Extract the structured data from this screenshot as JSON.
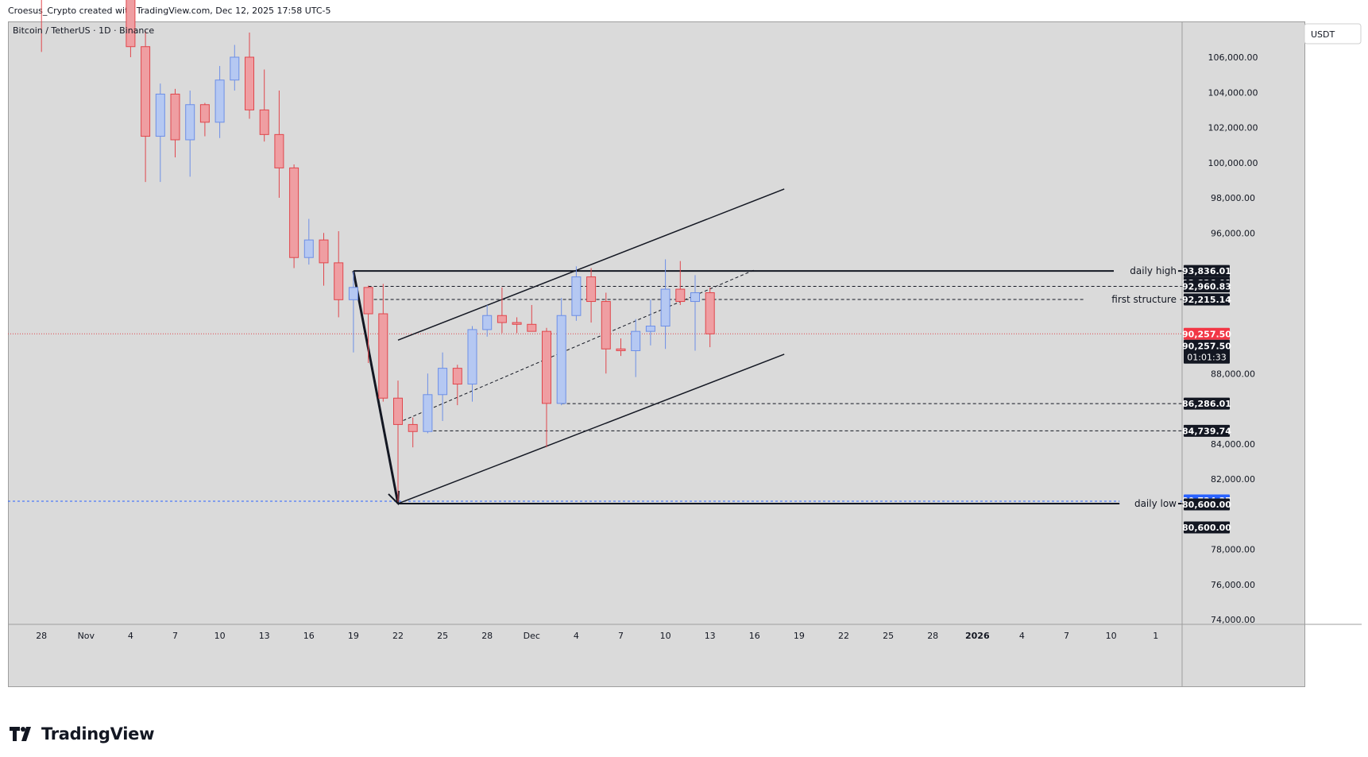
{
  "header": {
    "created_by": "Croesus_Crypto created with TradingView.com, Dec 12, 2025 17:58 UTC-5"
  },
  "symbol": {
    "title": "Bitcoin / TetherUS · 1D · Binance",
    "currency": "USDT"
  },
  "footer": {
    "brand": "TradingView"
  },
  "colors": {
    "up": "#6d8fe6",
    "up_fill": "#b5c8f2",
    "down": "#e0464c",
    "down_fill": "#ef9ea2",
    "grid_bg": "#dadada",
    "text": "#131722"
  },
  "chart_data": {
    "type": "candlestick",
    "title": "Bitcoin / TetherUS · 1D · Binance",
    "ylim": [
      73500,
      107500
    ],
    "y_ticks": [
      "106,000.00",
      "104,000.00",
      "102,000.00",
      "100,000.00",
      "98,000.00",
      "96,000.00",
      "88,000.00",
      "84,000.00",
      "82,000.00",
      "78,000.00",
      "76,000.00",
      "74,000.00"
    ],
    "y_tick_values": [
      106000,
      104000,
      102000,
      100000,
      98000,
      96000,
      88000,
      84000,
      82000,
      78000,
      76000,
      74000
    ],
    "x_ticks": [
      "28",
      "Nov",
      "4",
      "7",
      "10",
      "13",
      "16",
      "19",
      "22",
      "25",
      "28",
      "Dec",
      "4",
      "7",
      "10",
      "13",
      "16",
      "19",
      "22",
      "25",
      "28",
      "2026",
      "4",
      "7",
      "10",
      "1"
    ],
    "x_tick_days": [
      -34,
      -31,
      -28,
      -25,
      -22,
      -19,
      -16,
      -13,
      -10,
      -7,
      -4,
      -1,
      2,
      5,
      8,
      11,
      14,
      17,
      20,
      23,
      26,
      29,
      32,
      35,
      38,
      41
    ],
    "candles": [
      {
        "date": "2025-10-28",
        "day": -34,
        "o": 114000,
        "h": 116000,
        "l": 106300,
        "c": 112500
      },
      {
        "date": "2025-11-03",
        "day": -28,
        "o": 110500,
        "h": 111000,
        "l": 106000,
        "c": 106600
      },
      {
        "date": "2025-11-04",
        "day": -27,
        "o": 106600,
        "h": 107500,
        "l": 98900,
        "c": 101500
      },
      {
        "date": "2025-11-05",
        "day": -26,
        "o": 101500,
        "h": 104500,
        "l": 98900,
        "c": 103900
      },
      {
        "date": "2025-11-06",
        "day": -25,
        "o": 103900,
        "h": 104200,
        "l": 100300,
        "c": 101300
      },
      {
        "date": "2025-11-07",
        "day": -24,
        "o": 101300,
        "h": 104100,
        "l": 99200,
        "c": 103300
      },
      {
        "date": "2025-11-08",
        "day": -23,
        "o": 103300,
        "h": 103400,
        "l": 101500,
        "c": 102300
      },
      {
        "date": "2025-11-09",
        "day": -22,
        "o": 102300,
        "h": 105500,
        "l": 101400,
        "c": 104700
      },
      {
        "date": "2025-11-10",
        "day": -21,
        "o": 104700,
        "h": 106700,
        "l": 104100,
        "c": 106000
      },
      {
        "date": "2025-11-11",
        "day": -20,
        "o": 106000,
        "h": 107400,
        "l": 102500,
        "c": 103000
      },
      {
        "date": "2025-11-12",
        "day": -19,
        "o": 103000,
        "h": 105300,
        "l": 101200,
        "c": 101600
      },
      {
        "date": "2025-11-13",
        "day": -18,
        "o": 101600,
        "h": 104100,
        "l": 98000,
        "c": 99700
      },
      {
        "date": "2025-11-14",
        "day": -17,
        "o": 99700,
        "h": 99900,
        "l": 94000,
        "c": 94600
      },
      {
        "date": "2025-11-15",
        "day": -16,
        "o": 94600,
        "h": 96800,
        "l": 94200,
        "c": 95600
      },
      {
        "date": "2025-11-16",
        "day": -15,
        "o": 95600,
        "h": 96000,
        "l": 93000,
        "c": 94300
      },
      {
        "date": "2025-11-17",
        "day": -14,
        "o": 94300,
        "h": 96100,
        "l": 91200,
        "c": 92200
      },
      {
        "date": "2025-11-18",
        "day": -13,
        "o": 92200,
        "h": 93800,
        "l": 89200,
        "c": 92900
      },
      {
        "date": "2025-11-19",
        "day": -12,
        "o": 92900,
        "h": 93000,
        "l": 88600,
        "c": 91400
      },
      {
        "date": "2025-11-20",
        "day": -11,
        "o": 91400,
        "h": 93100,
        "l": 86400,
        "c": 86600
      },
      {
        "date": "2025-11-21",
        "day": -10,
        "o": 86600,
        "h": 87600,
        "l": 80700,
        "c": 85100
      },
      {
        "date": "2025-11-22",
        "day": -9,
        "o": 85100,
        "h": 85500,
        "l": 83800,
        "c": 84700
      },
      {
        "date": "2025-11-23",
        "day": -8,
        "o": 84700,
        "h": 88000,
        "l": 84600,
        "c": 86800
      },
      {
        "date": "2025-11-24",
        "day": -7,
        "o": 86800,
        "h": 89200,
        "l": 85300,
        "c": 88300
      },
      {
        "date": "2025-11-25",
        "day": -6,
        "o": 88300,
        "h": 88500,
        "l": 86200,
        "c": 87400
      },
      {
        "date": "2025-11-26",
        "day": -5,
        "o": 87400,
        "h": 90700,
        "l": 86400,
        "c": 90500
      },
      {
        "date": "2025-11-27",
        "day": -4,
        "o": 90500,
        "h": 91900,
        "l": 90100,
        "c": 91300
      },
      {
        "date": "2025-11-28",
        "day": -3,
        "o": 91300,
        "h": 92900,
        "l": 90300,
        "c": 90900
      },
      {
        "date": "2025-11-29",
        "day": -2,
        "o": 90900,
        "h": 91200,
        "l": 90300,
        "c": 90800
      },
      {
        "date": "2025-11-30",
        "day": -1,
        "o": 90800,
        "h": 91900,
        "l": 90400,
        "c": 90400
      },
      {
        "date": "2025-12-01",
        "day": 0,
        "o": 90400,
        "h": 90600,
        "l": 83800,
        "c": 86300
      },
      {
        "date": "2025-12-02",
        "day": 1,
        "o": 86300,
        "h": 92300,
        "l": 86200,
        "c": 91300
      },
      {
        "date": "2025-12-03",
        "day": 2,
        "o": 91300,
        "h": 94100,
        "l": 91000,
        "c": 93500
      },
      {
        "date": "2025-12-04",
        "day": 3,
        "o": 93500,
        "h": 94000,
        "l": 90900,
        "c": 92100
      },
      {
        "date": "2025-12-05",
        "day": 4,
        "o": 92100,
        "h": 92600,
        "l": 88000,
        "c": 89400
      },
      {
        "date": "2025-12-06",
        "day": 5,
        "o": 89400,
        "h": 90000,
        "l": 89000,
        "c": 89300
      },
      {
        "date": "2025-12-07",
        "day": 6,
        "o": 89300,
        "h": 91100,
        "l": 87800,
        "c": 90400
      },
      {
        "date": "2025-12-08",
        "day": 7,
        "o": 90400,
        "h": 92200,
        "l": 89600,
        "c": 90700
      },
      {
        "date": "2025-12-09",
        "day": 8,
        "o": 90700,
        "h": 94500,
        "l": 89400,
        "c": 92800
      },
      {
        "date": "2025-12-10",
        "day": 9,
        "o": 92800,
        "h": 94400,
        "l": 91900,
        "c": 92100
      },
      {
        "date": "2025-12-11",
        "day": 10,
        "o": 92100,
        "h": 93600,
        "l": 89300,
        "c": 92600
      },
      {
        "date": "2025-12-12",
        "day": 11,
        "o": 92600,
        "h": 92900,
        "l": 89500,
        "c": 90257.5
      }
    ],
    "price_labels": [
      {
        "value": 93836.01,
        "text": "93,836.01",
        "bg": "#131722",
        "fg": "#ffffff"
      },
      {
        "value": 93836.01,
        "text": "93,836.01",
        "bg": "#131722",
        "fg": "#ffffff",
        "sub": true
      },
      {
        "value": 92960.83,
        "text": "92,960.83",
        "bg": "#131722",
        "fg": "#ffffff"
      },
      {
        "value": 92215.14,
        "text": "92,215.14",
        "bg": "#131722",
        "fg": "#ffffff"
      },
      {
        "value": 90257.5,
        "text": "90,257.50",
        "bg": "#f23645",
        "fg": "#ffffff"
      },
      {
        "value": 86286.01,
        "text": "86,286.01",
        "bg": "#131722",
        "fg": "#ffffff"
      },
      {
        "value": 84739.74,
        "text": "84,739.74",
        "bg": "#131722",
        "fg": "#ffffff"
      },
      {
        "value": 80734.37,
        "text": "80,734.37",
        "bg": "#2962ff",
        "fg": "#ffffff"
      },
      {
        "value": 80600.0,
        "text": "80,600.00",
        "bg": "#131722",
        "fg": "#ffffff"
      },
      {
        "value": 80600.0,
        "text": "80,600.00",
        "bg": "#131722",
        "fg": "#ffffff",
        "sub": true
      }
    ],
    "last_price_box": {
      "price": "90,257.50",
      "countdown": "01:01:33"
    },
    "annotations": [
      {
        "text": "daily high",
        "value": 93836.01
      },
      {
        "text": "first structure",
        "value": 92215.14
      },
      {
        "text": "daily low",
        "value": 80600.0
      }
    ],
    "h_lines": [
      {
        "value": 93836.01,
        "from_day": -13,
        "to_day": 43,
        "style": "solid",
        "width": 2
      },
      {
        "value": 92960.83,
        "from_day": -12,
        "to_day": 44,
        "style": "dashed",
        "width": 1
      },
      {
        "value": 92215.14,
        "from_day": -12,
        "to_day": 44,
        "style": "dashed",
        "width": 1
      },
      {
        "value": 86286.01,
        "from_day": 1,
        "to_day": 44,
        "style": "dashed",
        "width": 1
      },
      {
        "value": 84739.74,
        "from_day": -8,
        "to_day": 44,
        "style": "dashed",
        "width": 1
      },
      {
        "value": 80600.0,
        "from_day": -10,
        "to_day": 43,
        "style": "solid",
        "width": 2
      }
    ],
    "trend_lines": [
      {
        "from": [
          -10,
          89900
        ],
        "to": [
          16,
          98500
        ],
        "style": "solid",
        "width": 1.5
      },
      {
        "from": [
          -10,
          80600
        ],
        "to": [
          16,
          89100
        ],
        "style": "solid",
        "width": 1.5
      },
      {
        "from": [
          -10,
          85200
        ],
        "to": [
          14,
          93900
        ],
        "style": "dashed",
        "width": 1
      },
      {
        "from": [
          -13,
          93836
        ],
        "to": [
          -10,
          80600
        ],
        "style": "solid",
        "width": 3
      }
    ]
  }
}
